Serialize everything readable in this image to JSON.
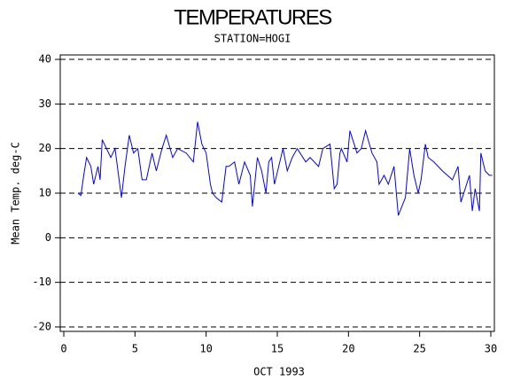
{
  "chart_data": {
    "type": "line",
    "title": "TEMPERATURES",
    "subtitle": "STATION=HOGI",
    "x_label": "OCT 1993",
    "y_label": "Mean Temp. deg-C",
    "xlim": [
      -0.25,
      30.25
    ],
    "ylim": [
      -21,
      41
    ],
    "xticks": [
      0,
      5,
      10,
      15,
      20,
      25,
      30
    ],
    "yticks": [
      -20,
      -10,
      0,
      10,
      20,
      30,
      40
    ],
    "grid": true,
    "x": [
      1.0,
      1.2,
      1.4,
      1.6,
      1.9,
      2.1,
      2.4,
      2.55,
      2.7,
      3.0,
      3.3,
      3.6,
      4.05,
      4.3,
      4.6,
      4.9,
      5.2,
      5.5,
      5.8,
      6.2,
      6.5,
      6.9,
      7.2,
      7.65,
      8.0,
      8.6,
      9.1,
      9.4,
      9.7,
      10.0,
      10.3,
      10.45,
      10.7,
      11.1,
      11.4,
      11.6,
      12.0,
      12.3,
      12.7,
      13.1,
      13.25,
      13.6,
      13.9,
      14.2,
      14.4,
      14.6,
      14.8,
      15.1,
      15.4,
      15.7,
      16.05,
      16.4,
      17.0,
      17.3,
      17.9,
      18.2,
      18.7,
      19.0,
      19.2,
      19.4,
      19.5,
      19.9,
      20.1,
      20.6,
      20.9,
      21.2,
      21.65,
      22.0,
      22.15,
      22.5,
      22.8,
      23.2,
      23.5,
      24.0,
      24.3,
      24.6,
      24.9,
      25.1,
      25.4,
      25.6,
      26.0,
      26.6,
      27.3,
      27.7,
      27.9,
      28.5,
      28.7,
      28.9,
      29.2,
      29.3,
      29.6,
      29.9,
      30.1
    ],
    "series": [
      {
        "color": "#0000ff",
        "values": [
          10,
          9.5,
          14,
          18,
          16,
          12,
          16,
          13,
          22,
          20,
          18,
          20,
          9,
          16,
          23,
          19,
          20,
          13,
          13,
          19,
          15,
          20,
          23,
          18,
          20,
          19,
          17,
          26,
          21,
          19,
          12,
          10,
          9,
          8,
          16,
          16,
          17,
          12,
          17,
          14,
          7,
          18,
          15,
          10,
          17,
          18,
          12,
          16,
          20,
          15,
          18,
          20,
          17,
          18,
          16,
          20,
          21,
          11,
          12,
          19,
          20,
          17,
          24,
          19,
          20,
          24,
          19,
          17,
          12,
          14,
          12,
          16,
          5,
          9,
          20,
          14,
          10,
          13,
          21,
          18,
          17,
          15,
          13,
          16,
          8,
          14,
          6,
          11,
          6,
          19,
          15,
          14,
          14
        ]
      }
    ]
  }
}
